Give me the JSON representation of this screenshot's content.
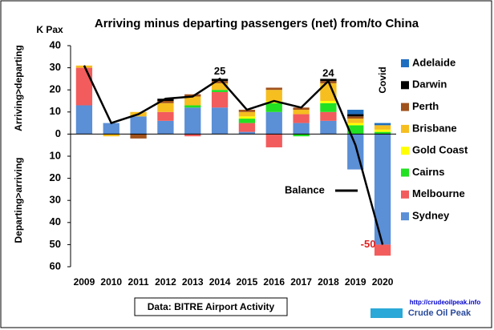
{
  "chart_data": {
    "type": "bar",
    "stacked": true,
    "title": "Arriving minus departing passengers (net) from/to China",
    "y_unit": "K Pax",
    "y_label_top": "Arriving>departing",
    "y_label_bottom": "Departing>arriving",
    "annotation": "Covid",
    "source": "Data: BITRE Airport Activity",
    "logo_text": "Crude Oil Peak",
    "logo_url": "http://crudeoilpeak.info",
    "categories": [
      "2009",
      "2010",
      "2011",
      "2012",
      "2013",
      "2014",
      "2015",
      "2016",
      "2017",
      "2018",
      "2019",
      "2020"
    ],
    "ylim": [
      -60,
      40
    ],
    "yticks": [
      40,
      30,
      20,
      10,
      0,
      {
        "value": -10,
        "label": "10"
      },
      {
        "value": -20,
        "label": "20"
      },
      {
        "value": -30,
        "label": "30"
      },
      {
        "value": -40,
        "label": "40"
      },
      {
        "value": -50,
        "label": "50"
      },
      {
        "value": -60,
        "label": "60"
      }
    ],
    "series": [
      {
        "name": "Sydney",
        "color": "#5b8fd6",
        "values": [
          13,
          5,
          8,
          6,
          12,
          12,
          1,
          10,
          5,
          6,
          -16,
          -50
        ]
      },
      {
        "name": "Melbourne",
        "color": "#f25c5c",
        "values": [
          17,
          0,
          0,
          4,
          -1,
          7,
          4,
          -6,
          4,
          4,
          0,
          -5
        ]
      },
      {
        "name": "Cairns",
        "color": "#22e022",
        "values": [
          0,
          0,
          0,
          0,
          1,
          1,
          2,
          4,
          -1,
          4,
          4,
          1
        ]
      },
      {
        "name": "Gold Coast",
        "color": "#ffff00",
        "values": [
          0,
          0,
          0,
          0,
          0,
          0,
          1,
          1,
          0,
          1,
          1,
          1
        ]
      },
      {
        "name": "Brisbane",
        "color": "#f6be1f",
        "values": [
          1,
          -1,
          2,
          4,
          4,
          3,
          2,
          5,
          2,
          8,
          2,
          2
        ]
      },
      {
        "name": "Perth",
        "color": "#a0521c",
        "values": [
          0,
          0,
          -2,
          1,
          1,
          1,
          1,
          1,
          1,
          1,
          1,
          0
        ]
      },
      {
        "name": "Darwin",
        "color": "#000000",
        "values": [
          0,
          0,
          0,
          1,
          0,
          1,
          0,
          0,
          0,
          1,
          1,
          0
        ]
      },
      {
        "name": "Adelaide",
        "color": "#1f6fc0",
        "values": [
          0,
          0,
          0,
          0,
          0,
          0,
          0,
          0,
          0,
          0,
          2,
          1
        ]
      }
    ],
    "line": {
      "name": "Balance",
      "color": "#000000",
      "values": [
        31,
        5,
        9,
        16,
        17,
        25,
        11,
        15,
        12,
        24,
        -5,
        -50
      ],
      "value_labels": [
        null,
        null,
        null,
        null,
        null,
        "25",
        null,
        null,
        null,
        "24",
        null,
        "-50"
      ]
    }
  }
}
